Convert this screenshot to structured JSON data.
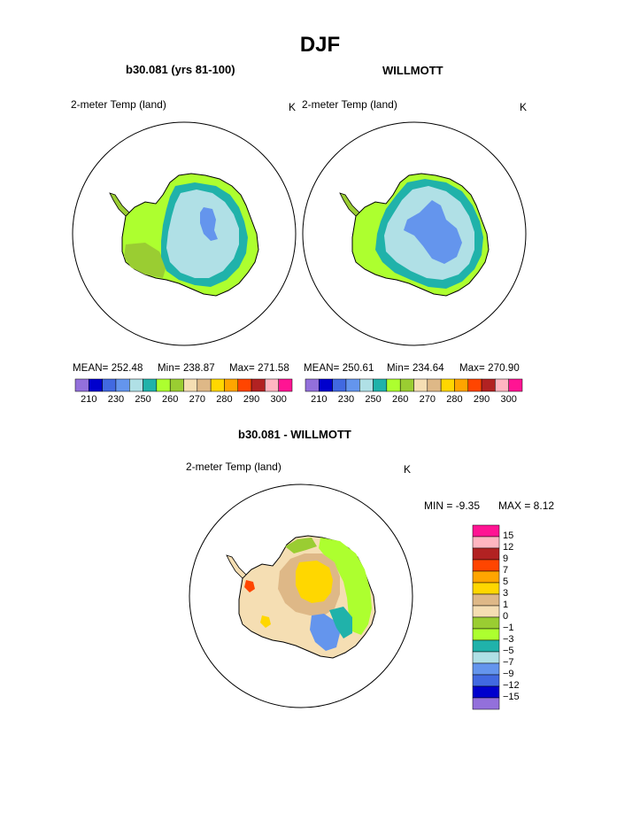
{
  "title": "DJF",
  "panels": [
    {
      "title": "b30.081 (yrs 81-100)",
      "variable": "2-meter Temp (land)",
      "units": "K",
      "stats": {
        "mean": "MEAN= 252.48",
        "min": "Min= 238.87",
        "max": "Max= 271.58"
      }
    },
    {
      "title": "WILLMOTT",
      "variable": "2-meter Temp (land)",
      "units": "K",
      "stats": {
        "mean": "MEAN= 250.61",
        "min": "Min= 234.64",
        "max": "Max= 270.90"
      }
    }
  ],
  "abs_colorbar": {
    "colors": [
      "#9370db",
      "#0000cd",
      "#4169e1",
      "#6495ed",
      "#b0e0e6",
      "#20b2aa",
      "#adff2f",
      "#9acd32",
      "#f5deb3",
      "#deb887",
      "#ffd700",
      "#ffa500",
      "#ff4500",
      "#b22222",
      "#ffb6c1",
      "#ff1493"
    ],
    "labels": [
      "210",
      "230",
      "250",
      "260",
      "270",
      "280",
      "290",
      "300"
    ]
  },
  "difference": {
    "title": "b30.081 - WILLMOTT",
    "variable": "2-meter Temp (land)",
    "units": "K",
    "min_text": "MIN =   -9.35",
    "max_text": "MAX =    8.12"
  },
  "diff_colorbar": {
    "colors": [
      "#ff1493",
      "#ffb6c1",
      "#b22222",
      "#ff4500",
      "#ffa500",
      "#ffd700",
      "#deb887",
      "#f5deb3",
      "#9acd32",
      "#adff2f",
      "#20b2aa",
      "#b0e0e6",
      "#6495ed",
      "#4169e1",
      "#0000cd",
      "#9370db"
    ],
    "labels": [
      "15",
      "12",
      "9",
      "7",
      "5",
      "3",
      "1",
      "0",
      "−1",
      "−3",
      "−5",
      "−7",
      "−9",
      "−12",
      "−15"
    ]
  }
}
